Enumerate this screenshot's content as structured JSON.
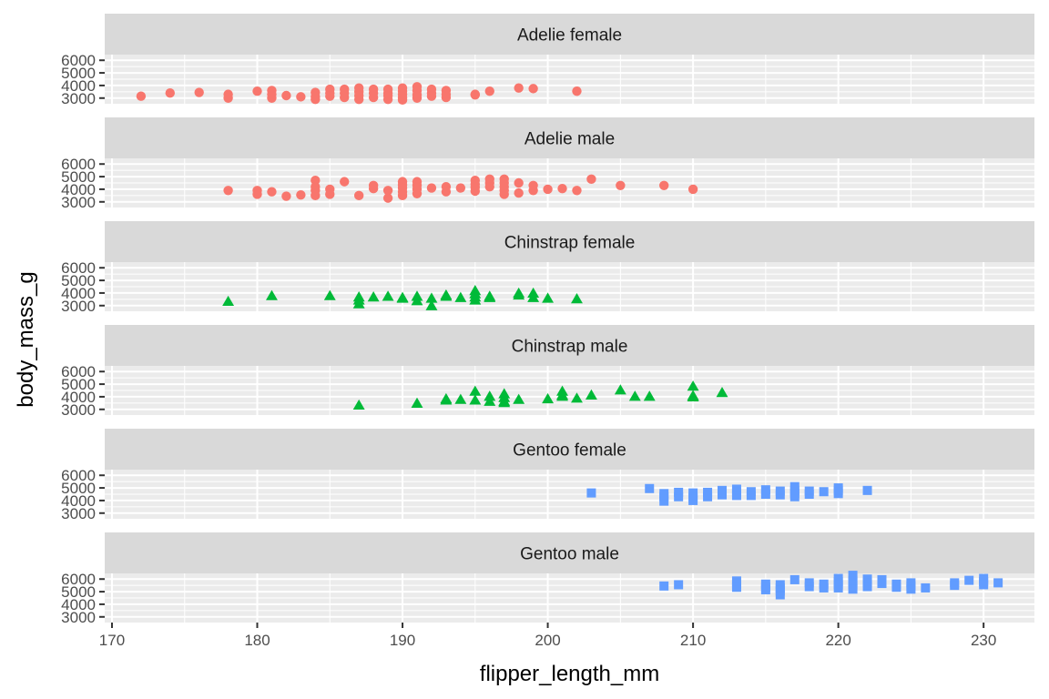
{
  "chart_data": {
    "type": "scatter",
    "facet": "row",
    "xlabel": "flipper_length_mm",
    "ylabel": "body_mass_g",
    "xlim": [
      169.5,
      233.5
    ],
    "ylim": [
      2550,
      6450
    ],
    "x_ticks": [
      170,
      180,
      190,
      200,
      210,
      220,
      230
    ],
    "y_ticks": [
      3000,
      4000,
      5000,
      6000
    ],
    "grid": true,
    "colors": {
      "Adelie": "#F8766D",
      "Chinstrap": "#00BA38",
      "Gentoo": "#619CFF"
    },
    "shapes": {
      "Adelie": "circle",
      "Chinstrap": "triangle",
      "Gentoo": "square"
    },
    "panels": [
      {
        "strip": "Adelie female",
        "species": "Adelie",
        "points": [
          [
            172,
            3150
          ],
          [
            174,
            3400
          ],
          [
            176,
            3450
          ],
          [
            178,
            3300
          ],
          [
            178,
            3000
          ],
          [
            180,
            3550
          ],
          [
            181,
            3600
          ],
          [
            181,
            3300
          ],
          [
            181,
            3000
          ],
          [
            182,
            3200
          ],
          [
            183,
            3100
          ],
          [
            184,
            3450
          ],
          [
            184,
            3100
          ],
          [
            184,
            2900
          ],
          [
            185,
            3700
          ],
          [
            185,
            3400
          ],
          [
            185,
            3150
          ],
          [
            186,
            3700
          ],
          [
            186,
            3400
          ],
          [
            186,
            3050
          ],
          [
            187,
            3800
          ],
          [
            187,
            3500
          ],
          [
            187,
            3200
          ],
          [
            187,
            2900
          ],
          [
            188,
            3700
          ],
          [
            188,
            3400
          ],
          [
            188,
            3050
          ],
          [
            189,
            3700
          ],
          [
            189,
            3400
          ],
          [
            189,
            3200
          ],
          [
            189,
            2900
          ],
          [
            190,
            3800
          ],
          [
            190,
            3550
          ],
          [
            190,
            3300
          ],
          [
            190,
            3050
          ],
          [
            190,
            2850
          ],
          [
            191,
            3900
          ],
          [
            191,
            3600
          ],
          [
            191,
            3250
          ],
          [
            191,
            3000
          ],
          [
            192,
            3700
          ],
          [
            192,
            3400
          ],
          [
            192,
            3150
          ],
          [
            193,
            3600
          ],
          [
            193,
            3300
          ],
          [
            193,
            3050
          ],
          [
            195,
            3300
          ],
          [
            195,
            3250
          ],
          [
            196,
            3550
          ],
          [
            198,
            3800
          ],
          [
            199,
            3750
          ],
          [
            202,
            3550
          ]
        ]
      },
      {
        "strip": "Adelie male",
        "species": "Adelie",
        "points": [
          [
            178,
            3900
          ],
          [
            180,
            3900
          ],
          [
            180,
            3600
          ],
          [
            181,
            3800
          ],
          [
            182,
            3450
          ],
          [
            183,
            3550
          ],
          [
            184,
            4700
          ],
          [
            184,
            4200
          ],
          [
            184,
            3900
          ],
          [
            184,
            3500
          ],
          [
            185,
            4000
          ],
          [
            185,
            3600
          ],
          [
            186,
            4600
          ],
          [
            187,
            3500
          ],
          [
            188,
            4300
          ],
          [
            188,
            4050
          ],
          [
            189,
            3900
          ],
          [
            189,
            3300
          ],
          [
            190,
            4600
          ],
          [
            190,
            4350
          ],
          [
            190,
            4100
          ],
          [
            190,
            3800
          ],
          [
            190,
            3500
          ],
          [
            191,
            4600
          ],
          [
            191,
            4300
          ],
          [
            191,
            4000
          ],
          [
            191,
            3650
          ],
          [
            192,
            4100
          ],
          [
            193,
            4200
          ],
          [
            193,
            3800
          ],
          [
            194,
            4100
          ],
          [
            195,
            4700
          ],
          [
            195,
            4400
          ],
          [
            195,
            4150
          ],
          [
            195,
            3850
          ],
          [
            196,
            4800
          ],
          [
            196,
            4500
          ],
          [
            196,
            4200
          ],
          [
            197,
            4800
          ],
          [
            197,
            4500
          ],
          [
            197,
            4200
          ],
          [
            197,
            3900
          ],
          [
            197,
            3600
          ],
          [
            198,
            4500
          ],
          [
            198,
            3700
          ],
          [
            199,
            4300
          ],
          [
            199,
            3900
          ],
          [
            200,
            4000
          ],
          [
            201,
            4050
          ],
          [
            202,
            3900
          ],
          [
            203,
            4800
          ],
          [
            205,
            4300
          ],
          [
            208,
            4300
          ],
          [
            210,
            4000
          ]
        ]
      },
      {
        "strip": "Chinstrap female",
        "species": "Chinstrap",
        "points": [
          [
            178,
            3300
          ],
          [
            181,
            3750
          ],
          [
            185,
            3750
          ],
          [
            187,
            3650
          ],
          [
            187,
            3400
          ],
          [
            187,
            3100
          ],
          [
            188,
            3650
          ],
          [
            189,
            3700
          ],
          [
            190,
            3600
          ],
          [
            190,
            3550
          ],
          [
            191,
            3700
          ],
          [
            191,
            3350
          ],
          [
            192,
            2950
          ],
          [
            192,
            3550
          ],
          [
            193,
            3700
          ],
          [
            193,
            3800
          ],
          [
            194,
            3600
          ],
          [
            195,
            4150
          ],
          [
            195,
            3900
          ],
          [
            195,
            3650
          ],
          [
            195,
            3400
          ],
          [
            196,
            3700
          ],
          [
            196,
            3600
          ],
          [
            198,
            3950
          ],
          [
            198,
            3800
          ],
          [
            199,
            3950
          ],
          [
            199,
            3600
          ],
          [
            200,
            3550
          ],
          [
            202,
            3500
          ]
        ]
      },
      {
        "strip": "Chinstrap male",
        "species": "Chinstrap",
        "points": [
          [
            187,
            3300
          ],
          [
            191,
            3450
          ],
          [
            193,
            3800
          ],
          [
            193,
            3700
          ],
          [
            194,
            3750
          ],
          [
            195,
            4400
          ],
          [
            195,
            3700
          ],
          [
            196,
            4000
          ],
          [
            196,
            3600
          ],
          [
            197,
            4200
          ],
          [
            197,
            3900
          ],
          [
            197,
            3600
          ],
          [
            197,
            3500
          ],
          [
            198,
            3750
          ],
          [
            200,
            3800
          ],
          [
            201,
            4400
          ],
          [
            201,
            4100
          ],
          [
            201,
            4000
          ],
          [
            202,
            3850
          ],
          [
            203,
            4100
          ],
          [
            205,
            4500
          ],
          [
            206,
            4000
          ],
          [
            207,
            4000
          ],
          [
            210,
            4800
          ],
          [
            210,
            4050
          ],
          [
            210,
            3950
          ],
          [
            212,
            4300
          ]
        ]
      },
      {
        "strip": "Gentoo female",
        "species": "Gentoo",
        "points": [
          [
            203,
            4600
          ],
          [
            207,
            4950
          ],
          [
            208,
            4550
          ],
          [
            208,
            4300
          ],
          [
            208,
            3950
          ],
          [
            209,
            4650
          ],
          [
            209,
            4300
          ],
          [
            210,
            4600
          ],
          [
            210,
            4250
          ],
          [
            210,
            4000
          ],
          [
            211,
            4650
          ],
          [
            211,
            4300
          ],
          [
            212,
            4800
          ],
          [
            212,
            4450
          ],
          [
            213,
            4900
          ],
          [
            213,
            4650
          ],
          [
            213,
            4400
          ],
          [
            214,
            4700
          ],
          [
            214,
            4400
          ],
          [
            215,
            4850
          ],
          [
            215,
            4500
          ],
          [
            216,
            4750
          ],
          [
            216,
            4450
          ],
          [
            217,
            5100
          ],
          [
            217,
            4800
          ],
          [
            217,
            4550
          ],
          [
            217,
            4300
          ],
          [
            218,
            4750
          ],
          [
            218,
            4500
          ],
          [
            219,
            4700
          ],
          [
            220,
            5000
          ],
          [
            220,
            4800
          ],
          [
            220,
            4550
          ],
          [
            222,
            4800
          ]
        ]
      },
      {
        "strip": "Gentoo male",
        "species": "Gentoo",
        "points": [
          [
            208,
            5450
          ],
          [
            209,
            5550
          ],
          [
            213,
            5850
          ],
          [
            213,
            5600
          ],
          [
            213,
            5350
          ],
          [
            215,
            5600
          ],
          [
            215,
            5350
          ],
          [
            215,
            5150
          ],
          [
            216,
            5550
          ],
          [
            216,
            5300
          ],
          [
            216,
            5050
          ],
          [
            216,
            4750
          ],
          [
            217,
            5950
          ],
          [
            218,
            5700
          ],
          [
            218,
            5400
          ],
          [
            219,
            5600
          ],
          [
            219,
            5300
          ],
          [
            220,
            6050
          ],
          [
            220,
            5800
          ],
          [
            220,
            5550
          ],
          [
            220,
            5300
          ],
          [
            221,
            6300
          ],
          [
            221,
            5850
          ],
          [
            221,
            5550
          ],
          [
            221,
            5200
          ],
          [
            222,
            6000
          ],
          [
            222,
            5700
          ],
          [
            222,
            5400
          ],
          [
            223,
            5950
          ],
          [
            223,
            5650
          ],
          [
            224,
            5600
          ],
          [
            224,
            5350
          ],
          [
            225,
            5700
          ],
          [
            225,
            5450
          ],
          [
            225,
            5200
          ],
          [
            226,
            5300
          ],
          [
            228,
            5700
          ],
          [
            228,
            5500
          ],
          [
            229,
            5900
          ],
          [
            230,
            6050
          ],
          [
            230,
            5800
          ],
          [
            230,
            5550
          ],
          [
            231,
            5700
          ]
        ]
      }
    ]
  }
}
